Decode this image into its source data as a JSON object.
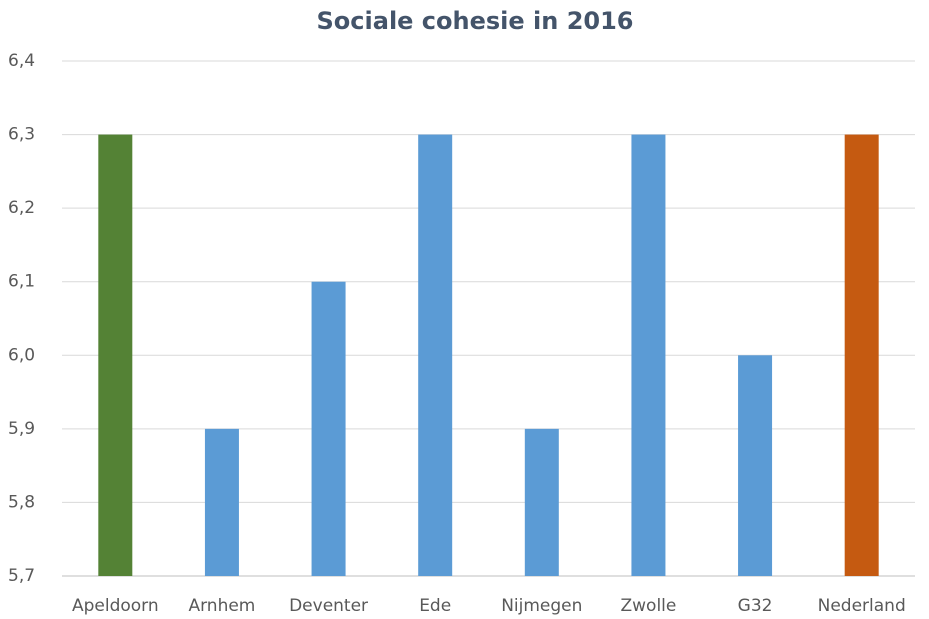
{
  "chart_data": {
    "type": "bar",
    "title": "Sociale cohesie in 2016",
    "categories": [
      "Apeldoorn",
      "Arnhem",
      "Deventer",
      "Ede",
      "Nijmegen",
      "Zwolle",
      "G32",
      "Nederland"
    ],
    "values": [
      6.3,
      5.9,
      6.1,
      6.3,
      5.9,
      6.3,
      6.0,
      6.3
    ],
    "colors": [
      "#548235",
      "#5b9bd5",
      "#5b9bd5",
      "#5b9bd5",
      "#5b9bd5",
      "#5b9bd5",
      "#5b9bd5",
      "#c55a11"
    ],
    "ylim": [
      5.7,
      6.4
    ],
    "yticks": [
      {
        "value": 5.7,
        "label": "5,7"
      },
      {
        "value": 5.8,
        "label": "5,8"
      },
      {
        "value": 5.9,
        "label": "5,9"
      },
      {
        "value": 6.0,
        "label": "6,0"
      },
      {
        "value": 6.1,
        "label": "6,1"
      },
      {
        "value": 6.2,
        "label": "6,2"
      },
      {
        "value": 6.3,
        "label": "6,3"
      },
      {
        "value": 6.4,
        "label": "6,4"
      }
    ],
    "grid": true
  }
}
